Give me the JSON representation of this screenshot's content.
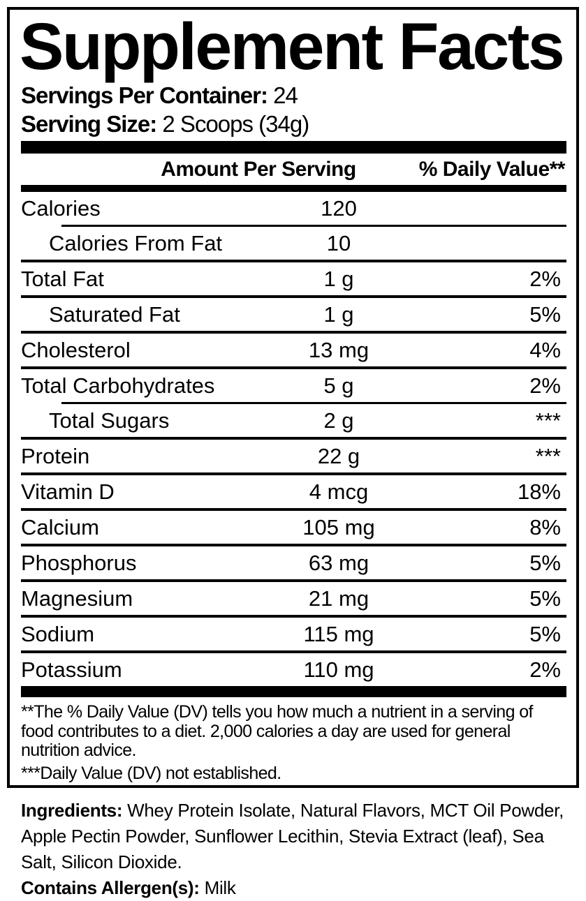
{
  "panel": {
    "title": "Supplement Facts",
    "servings_per_container": {
      "label": "Servings Per Container:",
      "value": "24"
    },
    "serving_size": {
      "label": "Serving Size:",
      "value": "2 Scoops (34g)"
    }
  },
  "table": {
    "headers": {
      "amount": "Amount Per Serving",
      "daily_value": "% Daily Value**"
    },
    "rows": [
      {
        "name": "Calories",
        "amount": "120",
        "dv": "",
        "indent": false,
        "rule": "none"
      },
      {
        "name": "Calories From Fat",
        "amount": "10",
        "dv": "",
        "indent": true,
        "rule": "inset"
      },
      {
        "name": "Total Fat",
        "amount": "1 g",
        "dv": "2%",
        "indent": false,
        "rule": "full"
      },
      {
        "name": "Saturated Fat",
        "amount": "1 g",
        "dv": "5%",
        "indent": true,
        "rule": "full"
      },
      {
        "name": "Cholesterol",
        "amount": "13 mg",
        "dv": "4%",
        "indent": false,
        "rule": "full"
      },
      {
        "name": "Total Carbohydrates",
        "amount": "5 g",
        "dv": "2%",
        "indent": false,
        "rule": "full"
      },
      {
        "name": "Total Sugars",
        "amount": "2 g",
        "dv": "***",
        "indent": true,
        "rule": "inset"
      },
      {
        "name": "Protein",
        "amount": "22 g",
        "dv": "***",
        "indent": false,
        "rule": "full"
      },
      {
        "name": "Vitamin D",
        "amount": "4 mcg",
        "dv": "18%",
        "indent": false,
        "rule": "full"
      },
      {
        "name": "Calcium",
        "amount": "105 mg",
        "dv": "8%",
        "indent": false,
        "rule": "full"
      },
      {
        "name": "Phosphorus",
        "amount": "63 mg",
        "dv": "5%",
        "indent": false,
        "rule": "full"
      },
      {
        "name": "Magnesium",
        "amount": "21 mg",
        "dv": "5%",
        "indent": false,
        "rule": "full"
      },
      {
        "name": "Sodium",
        "amount": "115 mg",
        "dv": "5%",
        "indent": false,
        "rule": "full"
      },
      {
        "name": "Potassium",
        "amount": "110 mg",
        "dv": "2%",
        "indent": false,
        "rule": "full"
      }
    ]
  },
  "footnotes": {
    "daily_value_note": "**The % Daily Value (DV) tells you how much a nutrient in a serving of food contributes to a diet. 2,000 calories a day are used for general nutrition advice.",
    "not_established_note": "***Daily Value (DV) not established."
  },
  "ingredients": {
    "label": "Ingredients:",
    "text": "Whey Protein Isolate, Natural Flavors, MCT Oil Powder, Apple Pectin Powder, Sunflower Lecithin, Stevia Extract (leaf), Sea Salt, Silicon Dioxide.",
    "allergen_label": "Contains Allergen(s):",
    "allergen_value": "Milk"
  },
  "colors": {
    "text": "#000000",
    "background": "#ffffff"
  }
}
